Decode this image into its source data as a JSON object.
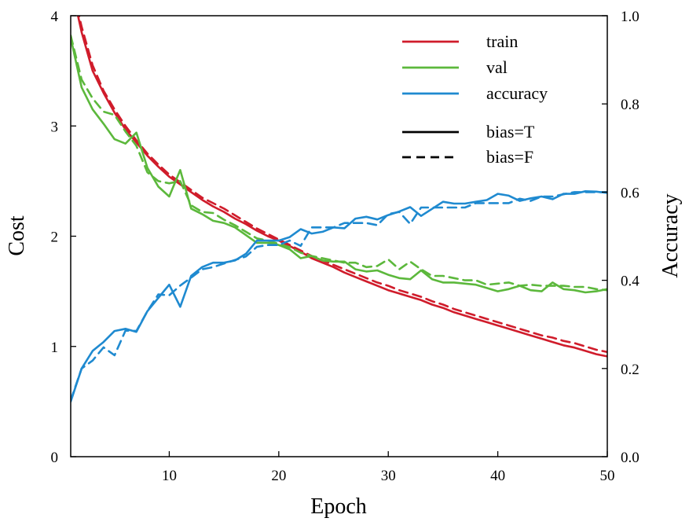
{
  "chart_data": {
    "type": "line",
    "xlabel": "Epoch",
    "ylabel": "Cost",
    "y2label": "Accuracy",
    "xlim": [
      1,
      50
    ],
    "ylim": [
      0,
      4
    ],
    "y2lim": [
      0,
      1
    ],
    "xticks": [
      "10",
      "20",
      "30",
      "40",
      "50"
    ],
    "xtick_values": [
      10,
      20,
      30,
      40,
      50
    ],
    "yticks": [
      "0",
      "1",
      "2",
      "3",
      "4"
    ],
    "ytick_values": [
      0,
      1,
      2,
      3,
      4
    ],
    "y2ticks": [
      "0.0",
      "0.2",
      "0.4",
      "0.6",
      "0.8",
      "1.0"
    ],
    "y2tick_values": [
      0,
      0.2,
      0.4,
      0.6,
      0.8,
      1.0
    ],
    "grid": false,
    "legend_placement": "top-right",
    "legend": {
      "series": [
        {
          "label": "train",
          "color": "#d01c2b"
        },
        {
          "label": "val",
          "color": "#5cb83c"
        },
        {
          "label": "accuracy",
          "color": "#1f8ad0"
        }
      ],
      "styles": [
        {
          "label": "bias=T",
          "dash": "solid"
        },
        {
          "label": "bias=F",
          "dash": "dashed"
        }
      ]
    },
    "x": [
      1,
      2,
      3,
      4,
      5,
      6,
      7,
      8,
      9,
      10,
      11,
      12,
      13,
      14,
      15,
      16,
      17,
      18,
      19,
      20,
      21,
      22,
      23,
      24,
      25,
      26,
      27,
      28,
      29,
      30,
      31,
      32,
      33,
      34,
      35,
      36,
      37,
      38,
      39,
      40,
      41,
      42,
      43,
      44,
      45,
      46,
      47,
      48,
      49,
      50
    ],
    "series": [
      {
        "group": "train",
        "style": "bias=T",
        "axis": "left",
        "color": "#d01c2b",
        "dash": "solid",
        "values": [
          4.3,
          3.85,
          3.5,
          3.3,
          3.12,
          2.97,
          2.85,
          2.73,
          2.63,
          2.54,
          2.47,
          2.4,
          2.33,
          2.27,
          2.22,
          2.16,
          2.11,
          2.05,
          2.0,
          1.96,
          1.91,
          1.86,
          1.8,
          1.76,
          1.72,
          1.67,
          1.63,
          1.59,
          1.55,
          1.51,
          1.48,
          1.45,
          1.42,
          1.38,
          1.35,
          1.31,
          1.28,
          1.25,
          1.22,
          1.19,
          1.16,
          1.13,
          1.1,
          1.07,
          1.04,
          1.01,
          0.99,
          0.96,
          0.93,
          0.91
        ]
      },
      {
        "group": "train",
        "style": "bias=F",
        "axis": "left",
        "color": "#d01c2b",
        "dash": "dashed",
        "values": [
          4.32,
          3.9,
          3.55,
          3.32,
          3.15,
          3.0,
          2.87,
          2.75,
          2.65,
          2.56,
          2.49,
          2.42,
          2.35,
          2.3,
          2.25,
          2.19,
          2.13,
          2.07,
          2.02,
          1.97,
          1.92,
          1.87,
          1.82,
          1.78,
          1.74,
          1.7,
          1.66,
          1.62,
          1.58,
          1.55,
          1.51,
          1.48,
          1.45,
          1.41,
          1.38,
          1.34,
          1.31,
          1.28,
          1.25,
          1.22,
          1.19,
          1.16,
          1.13,
          1.1,
          1.08,
          1.05,
          1.03,
          1.0,
          0.97,
          0.95
        ]
      },
      {
        "group": "val",
        "style": "bias=T",
        "axis": "left",
        "color": "#5cb83c",
        "dash": "solid",
        "values": [
          3.8,
          3.35,
          3.15,
          3.02,
          2.88,
          2.84,
          2.94,
          2.62,
          2.45,
          2.36,
          2.6,
          2.25,
          2.2,
          2.14,
          2.12,
          2.08,
          2.01,
          1.94,
          1.94,
          1.92,
          1.88,
          1.8,
          1.82,
          1.78,
          1.77,
          1.77,
          1.7,
          1.68,
          1.69,
          1.65,
          1.62,
          1.61,
          1.69,
          1.61,
          1.58,
          1.58,
          1.57,
          1.56,
          1.53,
          1.5,
          1.52,
          1.55,
          1.51,
          1.5,
          1.58,
          1.52,
          1.51,
          1.49,
          1.5,
          1.52
        ]
      },
      {
        "group": "val",
        "style": "bias=F",
        "axis": "left",
        "color": "#5cb83c",
        "dash": "dashed",
        "values": [
          3.82,
          3.42,
          3.25,
          3.13,
          3.1,
          2.95,
          2.82,
          2.58,
          2.5,
          2.48,
          2.5,
          2.28,
          2.22,
          2.21,
          2.15,
          2.1,
          2.04,
          1.98,
          1.96,
          1.93,
          1.9,
          1.85,
          1.82,
          1.8,
          1.78,
          1.76,
          1.76,
          1.72,
          1.73,
          1.79,
          1.7,
          1.77,
          1.7,
          1.64,
          1.64,
          1.62,
          1.6,
          1.6,
          1.56,
          1.57,
          1.58,
          1.55,
          1.56,
          1.55,
          1.55,
          1.55,
          1.54,
          1.54,
          1.52,
          1.51
        ]
      },
      {
        "group": "accuracy",
        "style": "bias=T",
        "axis": "right",
        "color": "#1f8ad0",
        "dash": "solid",
        "values": [
          0.125,
          0.2,
          0.24,
          0.26,
          0.285,
          0.29,
          0.283,
          0.33,
          0.36,
          0.39,
          0.34,
          0.41,
          0.43,
          0.44,
          0.44,
          0.445,
          0.46,
          0.49,
          0.49,
          0.49,
          0.498,
          0.516,
          0.506,
          0.51,
          0.52,
          0.518,
          0.54,
          0.544,
          0.538,
          0.548,
          0.556,
          0.566,
          0.546,
          0.562,
          0.578,
          0.574,
          0.574,
          0.578,
          0.582,
          0.596,
          0.592,
          0.58,
          0.586,
          0.59,
          0.584,
          0.596,
          0.596,
          0.602,
          0.601,
          0.598
        ]
      },
      {
        "group": "accuracy",
        "style": "bias=F",
        "axis": "right",
        "color": "#1f8ad0",
        "dash": "dashed",
        "values": [
          0.128,
          0.2,
          0.218,
          0.248,
          0.23,
          0.286,
          0.285,
          0.33,
          0.368,
          0.366,
          0.388,
          0.406,
          0.425,
          0.43,
          0.438,
          0.446,
          0.454,
          0.476,
          0.48,
          0.48,
          0.49,
          0.478,
          0.52,
          0.52,
          0.52,
          0.53,
          0.53,
          0.53,
          0.525,
          0.55,
          0.555,
          0.528,
          0.565,
          0.565,
          0.565,
          0.565,
          0.565,
          0.575,
          0.575,
          0.575,
          0.575,
          0.585,
          0.58,
          0.59,
          0.59,
          0.595,
          0.6,
          0.6,
          0.6,
          0.6
        ]
      }
    ]
  }
}
